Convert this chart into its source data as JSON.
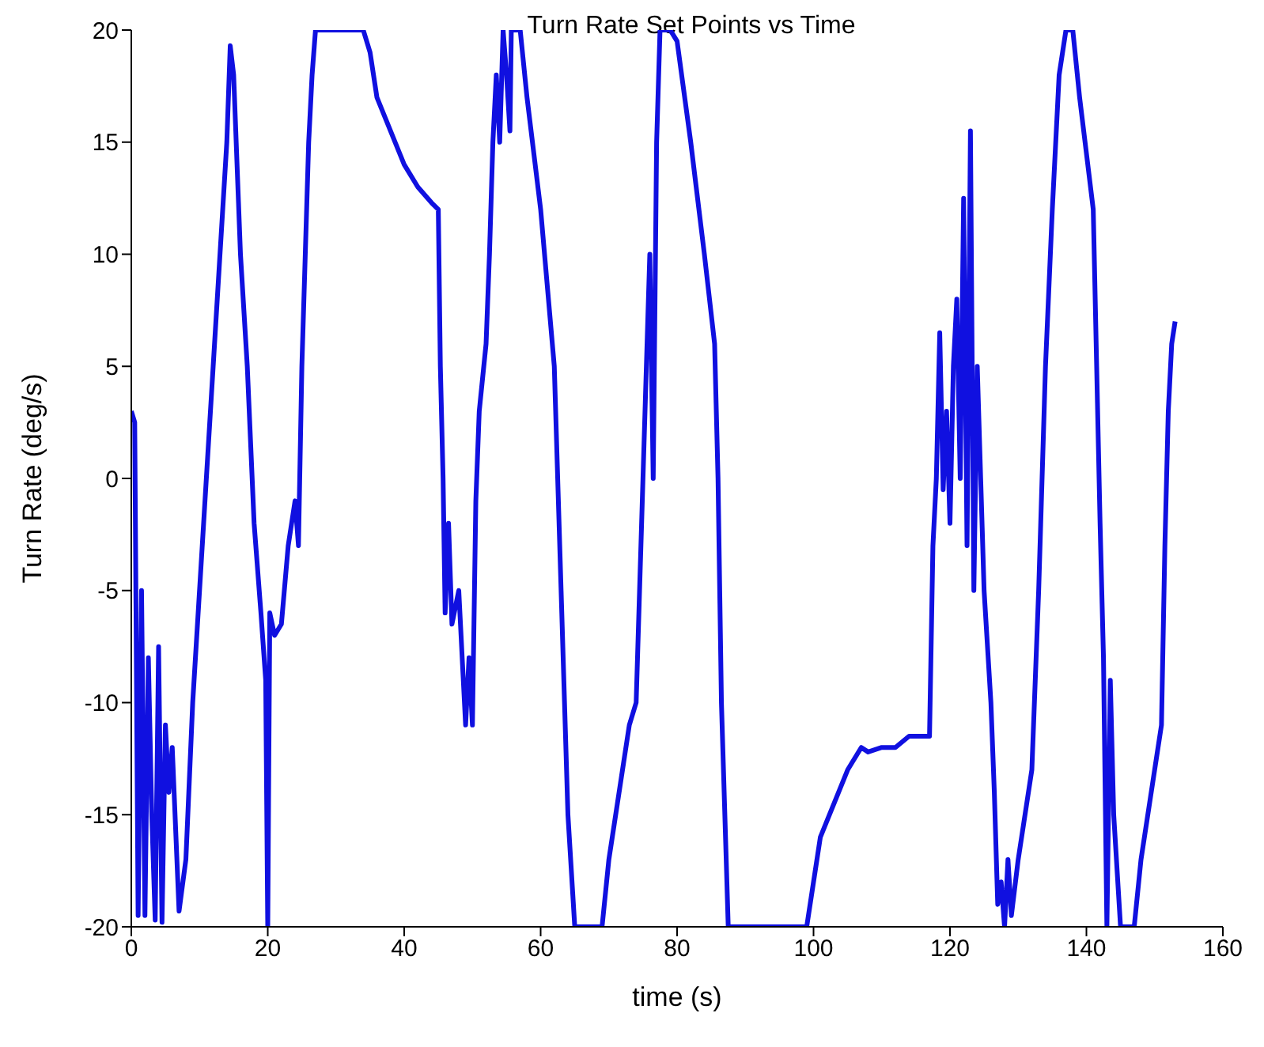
{
  "chart_data": {
    "type": "line",
    "title": "Turn Rate Set Points vs Time",
    "xlabel": "time (s)",
    "ylabel": "Turn Rate (deg/s)",
    "xlim": [
      0,
      160
    ],
    "xticks": [
      0,
      20,
      40,
      60,
      80,
      100,
      120,
      140,
      160
    ],
    "ylim": [
      -20,
      20
    ],
    "yticks": [
      -20,
      -15,
      -10,
      -5,
      0,
      5,
      10,
      15,
      20
    ],
    "grid": false,
    "marker": "none",
    "line_style": "solid",
    "series": [
      {
        "color": "#1010e0",
        "x": [
          0,
          0.5,
          1,
          1.5,
          2,
          2.5,
          3,
          3.5,
          4,
          4.5,
          5,
          5.5,
          6,
          7,
          8,
          9,
          10,
          12,
          14,
          14.5,
          15,
          16,
          17,
          18,
          19,
          19.7,
          20,
          20.3,
          21,
          22,
          23,
          24,
          24.5,
          25,
          25.5,
          26,
          26.5,
          27,
          34,
          35,
          36,
          38,
          40,
          42,
          44,
          45,
          45.3,
          45.7,
          46,
          46.5,
          47,
          48,
          48.5,
          49,
          49.5,
          50,
          50.5,
          51,
          52,
          52.5,
          53,
          53.5,
          54,
          54.5,
          55,
          55.5,
          55.7,
          57,
          58,
          60,
          62,
          63,
          64,
          65,
          69,
          70,
          72,
          73,
          74,
          75,
          76,
          76.5,
          77,
          77.5,
          79,
          80,
          82,
          84,
          85.5,
          86,
          86.5,
          87.5,
          99,
          100,
          101,
          103,
          105,
          107,
          108,
          110,
          112,
          114,
          117,
          117.5,
          118,
          118.5,
          119,
          119.5,
          120,
          120.5,
          121,
          121.5,
          122,
          122.5,
          123,
          123.5,
          124,
          124.5,
          125,
          126,
          126.5,
          127,
          127.5,
          128,
          128.5,
          129,
          130,
          132,
          133,
          134,
          135,
          136,
          137,
          138,
          139,
          141,
          141.5,
          142,
          142.5,
          143,
          143.5,
          144,
          145,
          147,
          148,
          150,
          151,
          151.5,
          152,
          152.5,
          153
        ],
        "values": [
          3,
          2.5,
          -19.5,
          -5,
          -19.5,
          -8,
          -15,
          -19.7,
          -7.5,
          -19.8,
          -11,
          -14,
          -12,
          -19.3,
          -17,
          -10,
          -5,
          5,
          15,
          19.3,
          18,
          10,
          5,
          -2,
          -6,
          -9,
          -20,
          -6,
          -7,
          -6.5,
          -3,
          -1,
          -3,
          5,
          10,
          15,
          18,
          20,
          20,
          19,
          17,
          15.5,
          14,
          13,
          12.3,
          12,
          5,
          0,
          -6,
          -2,
          -6.5,
          -5,
          -8,
          -11,
          -8,
          -11,
          -1,
          3,
          6,
          10,
          15,
          18,
          15,
          20,
          18,
          15.5,
          20,
          20,
          17,
          12,
          5,
          -5,
          -15,
          -20,
          -20,
          -17,
          -13,
          -11,
          -10,
          0,
          10,
          0,
          15,
          20,
          20,
          19.5,
          15,
          10,
          6,
          0,
          -10,
          -20,
          -20,
          -18,
          -16,
          -14.5,
          -13,
          -12,
          -12.2,
          -12,
          -12,
          -11.5,
          -11.5,
          -3,
          0,
          6.5,
          -0.5,
          3,
          -2,
          5,
          8,
          0,
          12.5,
          -3,
          15.5,
          -5,
          5,
          0,
          -5,
          -10,
          -14,
          -19,
          -18,
          -20,
          -17,
          -19.5,
          -17,
          -13,
          -5,
          5,
          12,
          18,
          20,
          20,
          17,
          12,
          5,
          -2,
          -8,
          -20,
          -9,
          -15,
          -20,
          -20,
          -17,
          -13,
          -11,
          -3,
          3,
          6,
          7
        ]
      }
    ]
  }
}
